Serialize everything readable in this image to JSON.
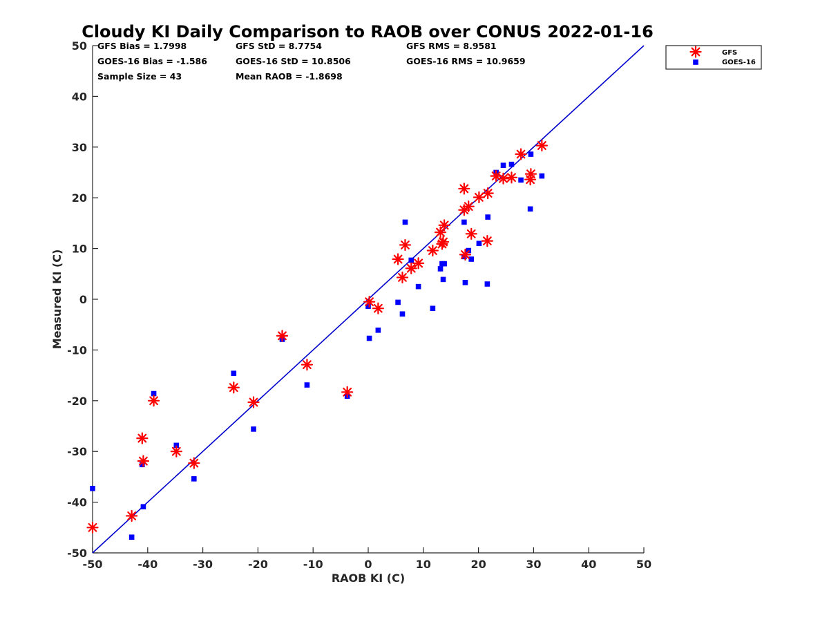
{
  "chart_data": {
    "type": "scatter",
    "title": "Cloudy KI Daily Comparison to RAOB over CONUS 2022-01-16",
    "xlabel": "RAOB KI (C)",
    "ylabel": "Measured KI (C)",
    "xlim": [
      -50,
      50
    ],
    "ylim": [
      -50,
      50
    ],
    "xticks": [
      "-50",
      "-40",
      "-30",
      "-20",
      "-10",
      "0",
      "10",
      "20",
      "30",
      "40",
      "50"
    ],
    "yticks": [
      "50",
      "40",
      "30",
      "20",
      "10",
      "0",
      "-10",
      "-20",
      "-30",
      "-40",
      "-50"
    ],
    "grid": false,
    "legend_position": "outside-top-right",
    "reference_line": {
      "type": "y=x",
      "color": "#0000cc"
    },
    "stats": [
      [
        "GFS Bias = 1.7998",
        "GFS StD = 8.7754",
        "GFS RMS = 8.9581"
      ],
      [
        "GOES-16 Bias = -1.586",
        "GOES-16 StD = 10.8506",
        "GOES-16 RMS = 10.9659"
      ],
      [
        "Sample Size = 43",
        "Mean RAOB = -1.8698",
        ""
      ]
    ],
    "series": [
      {
        "name": "GFS",
        "marker": "asterisk",
        "color": "#ff0000",
        "x": [
          -50,
          -42.9,
          -41,
          -40.8,
          -38.9,
          -34.8,
          -31.6,
          -24.4,
          -20.8,
          -15.6,
          -11.1,
          -3.8,
          0.2,
          1.8,
          5.4,
          6.2,
          6.7,
          7.8,
          9.1,
          11.7,
          13.1,
          13.4,
          13.6,
          13.8,
          17.4,
          17.4,
          17.6,
          18.2,
          18.7,
          20.1,
          21.6,
          21.7,
          23.2,
          24.5,
          26,
          27.7,
          29.4,
          29.5,
          31.5
        ],
        "y": [
          -45,
          -42.7,
          -27.4,
          -31.9,
          -20,
          -30,
          -32.3,
          -17.4,
          -20.3,
          -7.2,
          -12.9,
          -18.3,
          -0.5,
          -1.8,
          7.9,
          4.3,
          10.7,
          6.1,
          7.1,
          9.6,
          13.2,
          10.9,
          11.3,
          14.6,
          21.8,
          17.6,
          8.8,
          18.3,
          12.9,
          20.1,
          11.5,
          20.9,
          24.3,
          23.8,
          24,
          28.6,
          23.6,
          24.7,
          30.3
        ]
      },
      {
        "name": "GOES-16",
        "marker": "square",
        "color": "#0000ff",
        "x": [
          -50,
          -42.9,
          -41,
          -40.8,
          -38.9,
          -34.8,
          -31.6,
          -24.4,
          -20.8,
          -15.6,
          -11.1,
          -3.8,
          0,
          0.2,
          1.8,
          5.4,
          6.2,
          6.7,
          7.8,
          9.1,
          11.7,
          13.1,
          13.4,
          13.6,
          13.8,
          17.4,
          17.4,
          17.6,
          18.2,
          18.7,
          20.1,
          21.6,
          21.7,
          23.2,
          24.5,
          26,
          27.7,
          29.4,
          29.5,
          31.5
        ],
        "y": [
          -37.3,
          -46.9,
          -32.6,
          -40.9,
          -18.6,
          -28.8,
          -35.4,
          -14.6,
          -25.6,
          -7.9,
          -16.9,
          -19.1,
          -1.4,
          -7.7,
          -6.1,
          -0.6,
          -2.9,
          15.2,
          7.7,
          2.5,
          -1.8,
          6,
          7,
          3.9,
          7,
          15.2,
          8.4,
          3.3,
          9.6,
          7.9,
          11,
          3,
          16.2,
          25,
          26.4,
          26.6,
          23.5,
          17.8,
          28.6,
          24.3
        ]
      }
    ]
  }
}
